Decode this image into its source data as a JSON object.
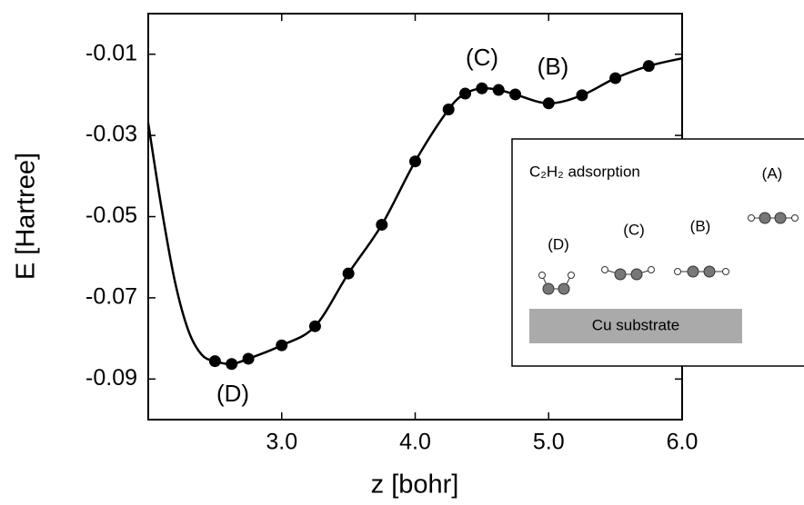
{
  "chart_data": {
    "type": "line",
    "xlabel": "z [bohr]",
    "ylabel": "E [Hartree]",
    "xlim": [
      2,
      6
    ],
    "ylim": [
      -0.1,
      0
    ],
    "xticks": [
      {
        "value": 3,
        "label": "3.0"
      },
      {
        "value": 4,
        "label": "4.0"
      },
      {
        "value": 5,
        "label": "5.0"
      },
      {
        "value": 6,
        "label": "6.0"
      }
    ],
    "yticks": [
      -0.01,
      -0.03,
      -0.05,
      -0.07,
      -0.09
    ],
    "series": [
      {
        "color": "#000000",
        "markers": false,
        "x": [
          2.0,
          2.1,
          2.2,
          2.3,
          2.4,
          2.5,
          2.625,
          2.75,
          3.0,
          3.25,
          3.5,
          3.75,
          4.0,
          4.25,
          4.375,
          4.5,
          4.625,
          4.75,
          5.0,
          5.25,
          5.5,
          5.75,
          6.0
        ],
        "values": [
          -0.027,
          -0.048,
          -0.066,
          -0.078,
          -0.084,
          -0.0856,
          -0.0863,
          -0.085,
          -0.0817,
          -0.077,
          -0.064,
          -0.052,
          -0.0364,
          -0.0236,
          -0.0197,
          -0.0184,
          -0.0188,
          -0.0199,
          -0.0221,
          -0.0201,
          -0.0159,
          -0.0129,
          -0.011
        ]
      },
      {
        "color": "#000000",
        "markers": true,
        "x": [
          2.5,
          2.625,
          2.75,
          3.0,
          3.25,
          3.5,
          3.75,
          4.0,
          4.25,
          4.375,
          4.5,
          4.625,
          4.75,
          5.0,
          5.25,
          5.5,
          5.75
        ],
        "values": [
          -0.0856,
          -0.0863,
          -0.085,
          -0.0817,
          -0.077,
          -0.064,
          -0.052,
          -0.0364,
          -0.0236,
          -0.0197,
          -0.0184,
          -0.0188,
          -0.0199,
          -0.0221,
          -0.0201,
          -0.0159,
          -0.0129
        ]
      }
    ],
    "annotations": [
      "(C)",
      "(B)",
      "(D)"
    ],
    "inset": {
      "title": "C₂H₂ adsorption",
      "labels": [
        "(A)",
        "(B)",
        "(C)",
        "(D)"
      ],
      "substrate": "Cu substrate"
    }
  }
}
